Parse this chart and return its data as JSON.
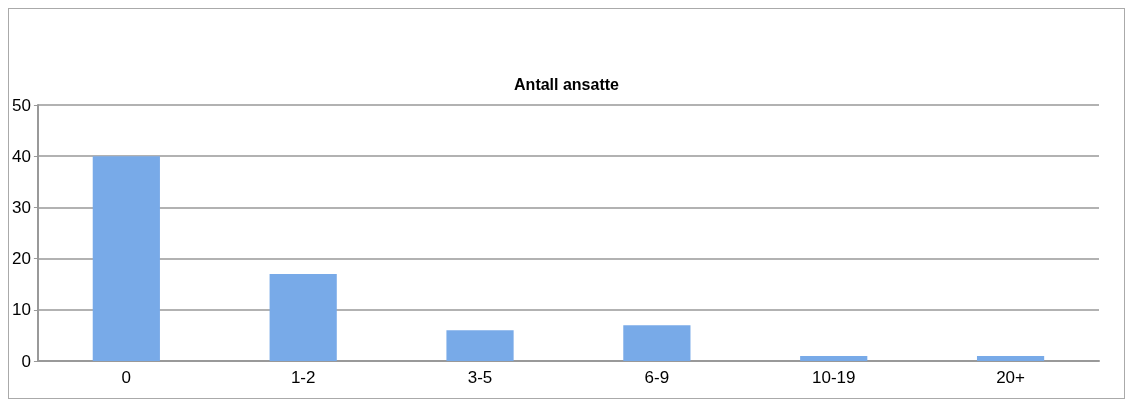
{
  "chart_data": {
    "type": "bar",
    "title": "Antall ansatte",
    "categories": [
      "0",
      "1-2",
      "3-5",
      "6-9",
      "10-19",
      "20+"
    ],
    "values": [
      40,
      17,
      6,
      7,
      1,
      1
    ],
    "color": "#78aae8",
    "ylim": [
      0,
      50
    ],
    "yticks": [
      0,
      10,
      20,
      30,
      40,
      50
    ],
    "grid": "y"
  }
}
